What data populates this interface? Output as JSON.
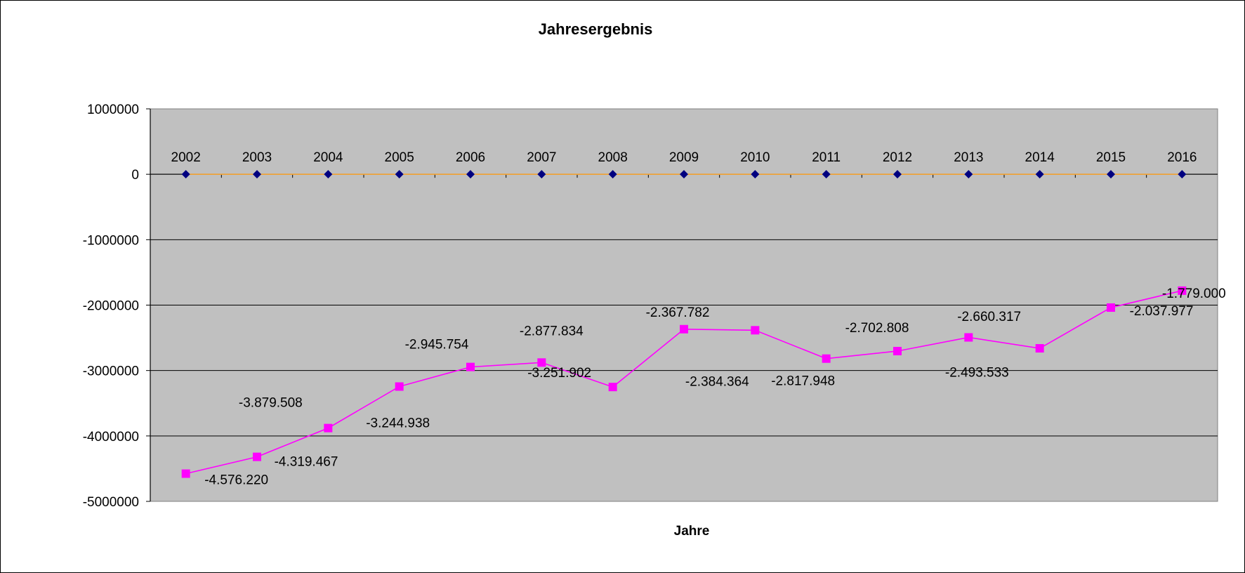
{
  "chart_data": {
    "type": "line",
    "title": "Jahresergebnis",
    "xlabel": "Jahre",
    "ylabel": "",
    "ylim": [
      -5000000,
      1000000
    ],
    "y_ticks": [
      "1000000",
      "0",
      "-1000000",
      "-2000000",
      "-3000000",
      "-4000000",
      "-5000000"
    ],
    "grid": true,
    "categories": [
      "2002",
      "2003",
      "2004",
      "2005",
      "2006",
      "2007",
      "2008",
      "2009",
      "2010",
      "2011",
      "2012",
      "2013",
      "2014",
      "2015",
      "2016"
    ],
    "series": [
      {
        "values": [
          0,
          0,
          0,
          0,
          0,
          0,
          0,
          0,
          0,
          0,
          0,
          0,
          0,
          0,
          0
        ],
        "line_color": "#F0A030",
        "marker_color": "#000080",
        "marker": "diamond"
      },
      {
        "values": [
          -4576220,
          -4319467,
          -3879508,
          -3244938,
          -2945754,
          -2877834,
          -3251902,
          -2367782,
          -2384364,
          -2817948,
          -2702808,
          -2493533,
          -2660317,
          -2037977,
          -1779000
        ],
        "labels": [
          "-4.576.220",
          "-4.319.467",
          "-3.879.508",
          "-3.244.938",
          "-2.945.754",
          "-2.877.834",
          "-3.251.902",
          "-2.367.782",
          "-2.384.364",
          "-2.817.948",
          "-2.702.808",
          "-2.493.533",
          "-2.660.317",
          "-2.037.977",
          "-1.779.000"
        ],
        "line_color": "#FF00FF",
        "marker_color": "#FF00FF",
        "marker": "square"
      }
    ],
    "plot_background": "#C0C0C0"
  }
}
